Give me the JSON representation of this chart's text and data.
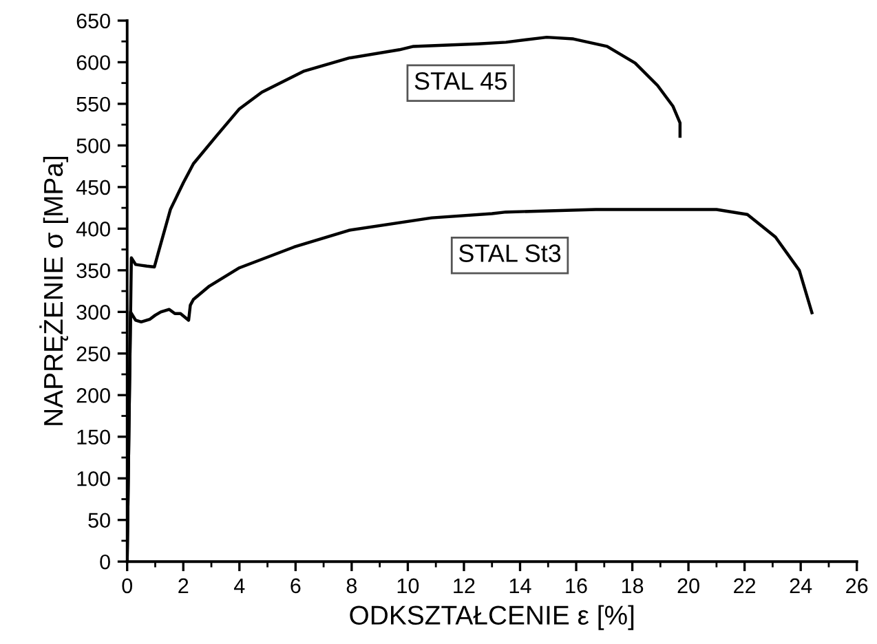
{
  "chart_data": {
    "type": "line",
    "xlabel": "ODKSZTAŁCENIE ε [%]",
    "ylabel": "NAPRĘŻENIE σ [MPa]",
    "xlim": [
      0,
      26
    ],
    "xticks": [
      0,
      2,
      4,
      6,
      8,
      10,
      12,
      14,
      16,
      18,
      20,
      22,
      24,
      26
    ],
    "ylim": [
      0,
      650
    ],
    "yticks": [
      0,
      50,
      100,
      150,
      200,
      250,
      300,
      350,
      400,
      450,
      500,
      550,
      600,
      650
    ],
    "grid": false,
    "legend": false,
    "marker": "none",
    "line_style": "solid",
    "series": [
      {
        "name": "STAL 45",
        "color": "#000000",
        "x": [
          0,
          0.08,
          0.15,
          0.3,
          0.5,
          0.7,
          0.97,
          1.1,
          1.54,
          2.0,
          2.36,
          3.17,
          4.0,
          4.8,
          6.28,
          7.9,
          9.7,
          10.2,
          12.5,
          13.5,
          14.95,
          15.9,
          17.1,
          18.1,
          18.9,
          19.45,
          19.7,
          19.7
        ],
        "values": [
          0,
          200,
          365,
          357,
          356,
          355,
          354,
          370,
          423,
          455,
          478,
          511,
          544,
          564,
          589,
          605,
          615,
          619,
          622,
          624,
          630,
          628,
          619,
          599,
          572,
          547,
          527,
          511
        ]
      },
      {
        "name": "STAL St3",
        "color": "#000000",
        "x": [
          0,
          0.06,
          0.12,
          0.3,
          0.5,
          0.8,
          1.0,
          1.2,
          1.5,
          1.7,
          1.9,
          2.19,
          2.25,
          2.36,
          2.93,
          4.0,
          5.95,
          7.9,
          10.85,
          13.0,
          13.5,
          16.7,
          21.0,
          22.1,
          23.1,
          23.95,
          24.4
        ],
        "values": [
          0,
          150,
          300,
          290,
          288,
          291,
          296,
          300,
          303,
          298,
          298,
          290,
          308,
          315,
          331,
          353,
          378,
          398,
          413,
          418,
          420,
          423,
          423,
          417,
          390,
          350,
          299
        ]
      }
    ]
  }
}
